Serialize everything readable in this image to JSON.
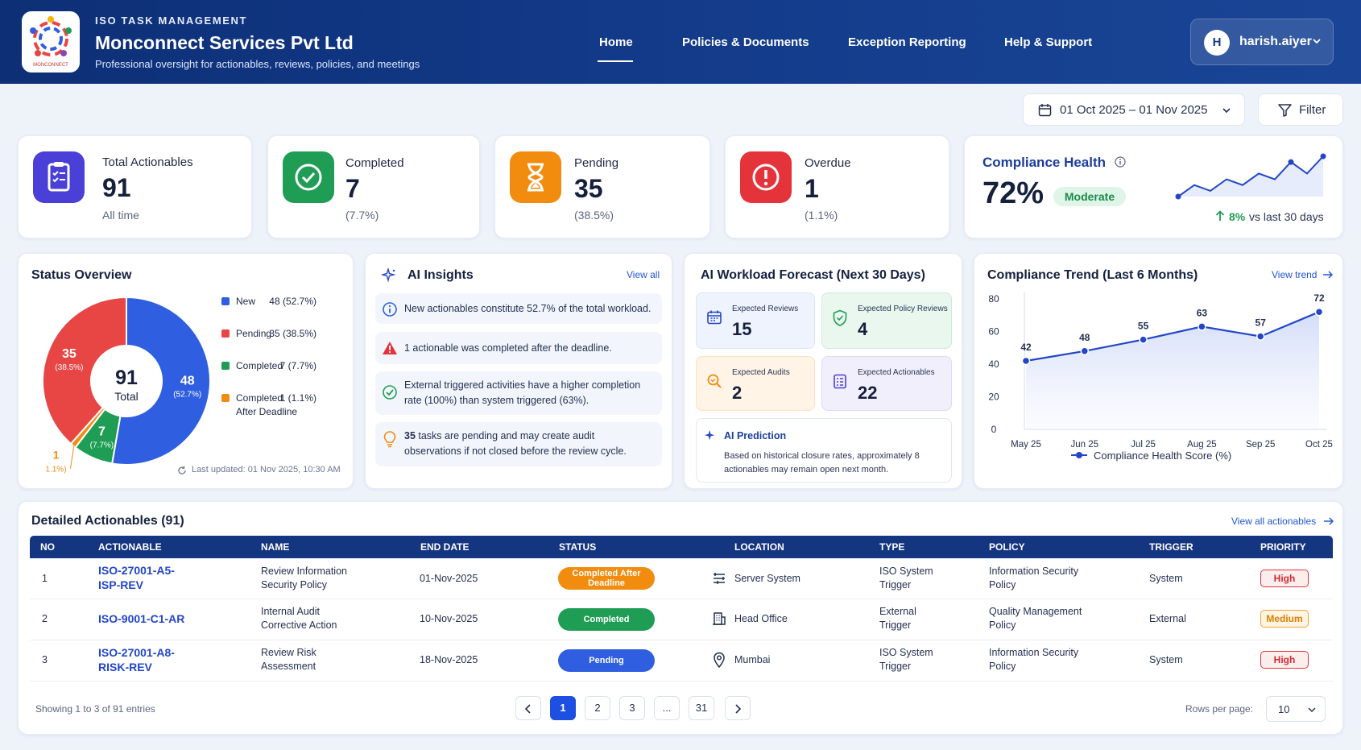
{
  "header": {
    "eyebrow": "ISO TASK MANAGEMENT",
    "company": "Monconnect Services Pvt Ltd",
    "tagline": "Professional oversight for actionables, reviews, policies, and meetings",
    "logo_text": "MONCONNECT",
    "nav": [
      "Home",
      "Policies & Documents",
      "Exception Reporting",
      "Help & Support"
    ],
    "active_nav": "Home",
    "user": {
      "initial": "H",
      "name": "harish.aiyer"
    }
  },
  "toolbar": {
    "date_range": "01 Oct 2025 – 01 Nov 2025",
    "filter_label": "Filter"
  },
  "kpis": [
    {
      "label": "Total Actionables",
      "value": "91",
      "sub": "All time",
      "color": "#4a3fd6",
      "icon": "clipboard-icon"
    },
    {
      "label": "Completed",
      "value": "7",
      "sub": "(7.7%)",
      "color": "#1f9d55",
      "icon": "check-icon"
    },
    {
      "label": "Pending",
      "value": "35",
      "sub": "(38.5%)",
      "color": "#f28c0f",
      "icon": "hourglass-icon"
    },
    {
      "label": "Overdue",
      "value": "1",
      "sub": "(1.1%)",
      "color": "#e5333b",
      "icon": "alert-icon"
    }
  ],
  "compliance_health": {
    "title": "Compliance Health",
    "value": "72%",
    "badge": "Moderate",
    "delta": "8%",
    "delta_label": "vs last 30 days",
    "spark": [
      3,
      5,
      4,
      6,
      5,
      7,
      6,
      9,
      7,
      10
    ]
  },
  "status_overview": {
    "title": "Status Overview",
    "total": "91",
    "total_label": "Total",
    "slices": [
      {
        "name": "New",
        "value": 48,
        "label": "48 (52.7%)",
        "pct": "(52.7%)",
        "color": "#2f5fe0"
      },
      {
        "name": "Completed",
        "value": 7,
        "label": "7 (7.7%)",
        "pct": "(7.7%)",
        "color": "#1f9d55"
      },
      {
        "name": "Completed After Deadline",
        "value": 1,
        "label": "1 (1.1%)",
        "pct": "1.1%)",
        "color": "#f28c0f"
      },
      {
        "name": "Pending",
        "value": 35,
        "label": "35 (38.5%)",
        "pct": "(38.5%)",
        "color": "#e84545"
      }
    ],
    "legend": [
      {
        "name": "New",
        "label": "48 (52.7%)",
        "color": "#2f5fe0"
      },
      {
        "name": "Pending",
        "label": "35 (38.5%)",
        "color": "#e84545"
      },
      {
        "name": "Completed",
        "label": "7 (7.7%)",
        "color": "#1f9d55"
      },
      {
        "name": "Completed",
        "name2": "After Deadline",
        "label": "1 (1.1%)",
        "color": "#f28c0f"
      }
    ],
    "last_updated": "Last updated: 01 Nov 2025, 10:30 AM"
  },
  "ai_insights": {
    "title": "AI Insights",
    "view_all": "View all",
    "items": [
      {
        "icon": "info-icon",
        "text": "New actionables constitute 52.7% of the total workload."
      },
      {
        "icon": "warning-icon",
        "text": "1 actionable was completed after the deadline."
      },
      {
        "icon": "check-circle-icon",
        "text": "External triggered activities have a higher completion rate (100%) than system triggered (63%)."
      },
      {
        "icon": "bulb-icon",
        "bold": "35",
        "text": " tasks are pending and may create audit observations if not closed before the review cycle."
      }
    ]
  },
  "forecast": {
    "title": "AI Workload Forecast (Next 30 Days)",
    "items": [
      {
        "label": "Expected Reviews",
        "value": "15"
      },
      {
        "label": "Expected Policy Reviews",
        "value": "4"
      },
      {
        "label": "Expected Audits",
        "value": "2"
      },
      {
        "label": "Expected Actionables",
        "value": "22"
      }
    ],
    "prediction_title": "AI Prediction",
    "prediction_text": "Based on historical closure rates, approximately 8 actionables may remain open next month."
  },
  "trend": {
    "title": "Compliance Trend (Last 6 Months)",
    "view_trend": "View trend"
  },
  "chart_data": {
    "type": "line",
    "categories": [
      "May 25",
      "Jun 25",
      "Jul 25",
      "Aug 25",
      "Sep 25",
      "Oct 25"
    ],
    "series": [
      {
        "name": "Compliance Health Score (%)",
        "values": [
          42,
          48,
          55,
          63,
          57,
          72
        ]
      }
    ],
    "ylim": [
      0,
      80
    ],
    "yticks": [
      0,
      20,
      40,
      60,
      80
    ],
    "grid": false,
    "legend": "bottom"
  },
  "table": {
    "title": "Detailed Actionables (91)",
    "view_all": "View all actionables",
    "headers": [
      "NO",
      "ACTIONABLE",
      "NAME",
      "END DATE",
      "STATUS",
      "LOCATION",
      "TYPE",
      "POLICY",
      "TRIGGER",
      "PRIORITY"
    ],
    "rows": [
      {
        "no": "1",
        "id": [
          "ISO-27001-A5-",
          "ISP-REV"
        ],
        "name": [
          "Review Information",
          "Security Policy"
        ],
        "end": "01-Nov-2025",
        "status": [
          "Completed After",
          "Deadline"
        ],
        "status_color": "#f28c0f",
        "location": "Server System",
        "loc_icon": "server-icon",
        "type": [
          "ISO System",
          "Trigger"
        ],
        "policy": [
          "Information Security",
          "Policy"
        ],
        "trigger": "System",
        "priority": "High"
      },
      {
        "no": "2",
        "id": [
          "ISO-9001-C1-AR",
          ""
        ],
        "name": [
          "Internal Audit",
          "Corrective Action"
        ],
        "end": "10-Nov-2025",
        "status": [
          "Completed",
          ""
        ],
        "status_color": "#1f9d55",
        "location": "Head Office",
        "loc_icon": "building-icon",
        "type": [
          "External",
          "Trigger"
        ],
        "policy": [
          "Quality Management",
          "Policy"
        ],
        "trigger": "External",
        "priority": "Medium"
      },
      {
        "no": "3",
        "id": [
          "ISO-27001-A8-",
          "RISK-REV"
        ],
        "name": [
          "Review Risk",
          "Assessment"
        ],
        "end": "18-Nov-2025",
        "status": [
          "Pending",
          ""
        ],
        "status_color": "#2f5fe0",
        "location": "Mumbai",
        "loc_icon": "pin-icon",
        "type": [
          "ISO System",
          "Trigger"
        ],
        "policy": [
          "Information Security",
          "Policy"
        ],
        "trigger": "System",
        "priority": "High"
      }
    ],
    "showing": "Showing 1 to 3 of 91 entries",
    "pages": [
      "1",
      "2",
      "3",
      "...",
      "31"
    ],
    "rows_per_page_label": "Rows per page:",
    "rows_per_page": "10"
  }
}
